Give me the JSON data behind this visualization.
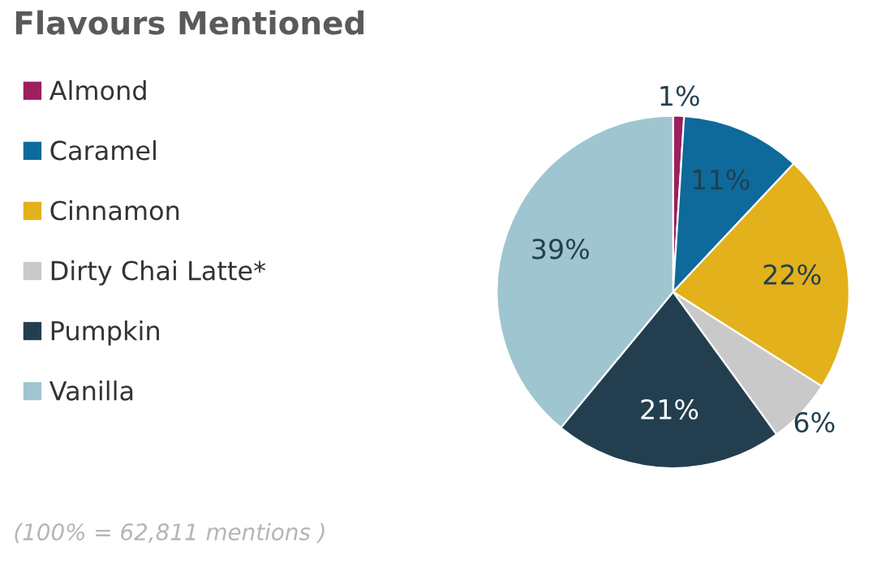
{
  "chart_data": {
    "type": "pie",
    "title": "Flavours Mentioned",
    "categories": [
      "Almond",
      "Caramel",
      "Cinnamon",
      "Dirty Chai Latte*",
      "Pumpkin",
      "Vanilla"
    ],
    "values": [
      1,
      11,
      22,
      6,
      21,
      39
    ],
    "value_labels": [
      "1%",
      "11%",
      "22%",
      "6%",
      "21%",
      "39%"
    ],
    "colors": [
      "#9c1f5e",
      "#0e6a9b",
      "#e3b11b",
      "#c9c9c9",
      "#233f4f",
      "#9fc5d0"
    ],
    "legend": "left",
    "annotations": [
      "(100% = 62,811 mentions )"
    ]
  }
}
